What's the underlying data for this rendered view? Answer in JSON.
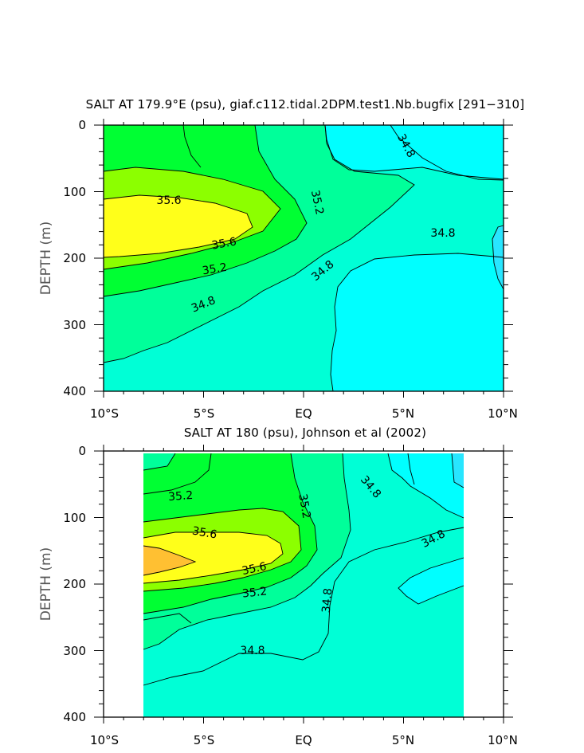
{
  "chart_data": [
    {
      "type": "heatmap",
      "title": "SALT AT 179.9°E (psu), giaf.c112.tidal.2DPM.test1.Nb.bugfix [291−310]",
      "ylabel": "DEPTH (m)",
      "xlabel": "",
      "xlim": [
        -10,
        10
      ],
      "ylim": [
        400,
        0
      ],
      "x_ticks": [
        "10°S",
        "5°S",
        "EQ",
        "5°N",
        "10°N"
      ],
      "y_ticks": [
        "0",
        "100",
        "200",
        "300",
        "400"
      ],
      "contour_labels": [
        "35.6",
        "35.6",
        "35.2",
        "35.2",
        "34.8",
        "34.8",
        "34.8",
        "34.8"
      ],
      "levels": [
        34.6,
        34.8,
        35.0,
        35.2,
        35.4,
        35.6,
        35.8
      ],
      "colors": [
        "#00ffff",
        "#00ffd6",
        "#00ff9a",
        "#00ff33",
        "#8cff00",
        "#ffff1a",
        "#ffc032"
      ]
    },
    {
      "type": "heatmap",
      "title": "SALT AT 180 (psu), Johnson et al (2002)",
      "ylabel": "DEPTH (m)",
      "xlabel": "",
      "xlim": [
        -10,
        10
      ],
      "ylim": [
        400,
        0
      ],
      "data_x_range": [
        -8,
        8
      ],
      "x_ticks": [
        "10°S",
        "5°S",
        "EQ",
        "5°N",
        "10°N"
      ],
      "y_ticks": [
        "0",
        "100",
        "200",
        "300",
        "400"
      ],
      "contour_labels": [
        "35.2",
        "35.2",
        "35.6",
        "35.6",
        "35.2",
        "34.8",
        "34.8",
        "34.8",
        "34.8"
      ],
      "levels": [
        34.6,
        34.8,
        35.0,
        35.2,
        35.4,
        35.6,
        35.8
      ],
      "colors": [
        "#00ffff",
        "#00ffd6",
        "#00ff9a",
        "#00ff33",
        "#8cff00",
        "#ffff1a",
        "#ffc032"
      ]
    }
  ]
}
